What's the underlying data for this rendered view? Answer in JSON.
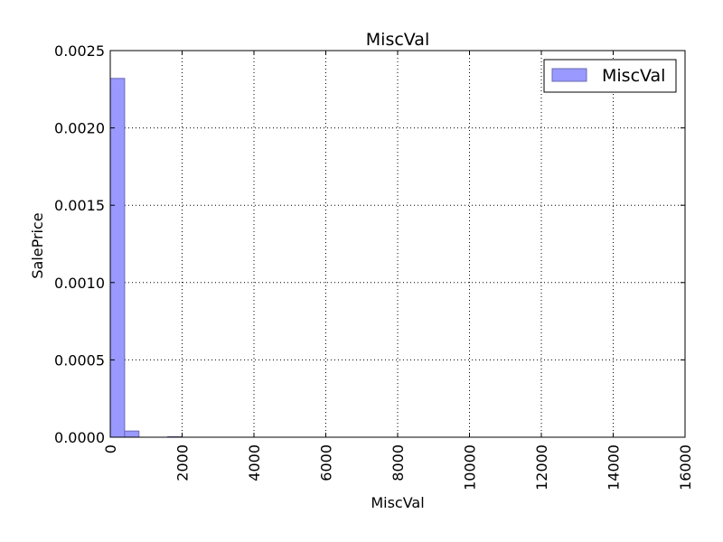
{
  "chart_data": {
    "type": "bar",
    "title": "MiscVal",
    "xlabel": "MiscVal",
    "ylabel": "SalePrice",
    "xlim": [
      0,
      16000
    ],
    "ylim": [
      0,
      0.0025
    ],
    "x_ticks": [
      "0",
      "2000",
      "4000",
      "6000",
      "8000",
      "10000",
      "12000",
      "14000",
      "16000"
    ],
    "y_ticks": [
      "0.0000",
      "0.0005",
      "0.0010",
      "0.0015",
      "0.0020",
      "0.0025"
    ],
    "grid": true,
    "legend_position": "top-right",
    "series": [
      {
        "name": "MiscVal",
        "color": "#9999ff",
        "edge_color": "#6a6ab3",
        "bins": [
          {
            "x0": 0,
            "x1": 400,
            "value": 0.00232
          },
          {
            "x0": 400,
            "x1": 800,
            "value": 4e-05
          },
          {
            "x0": 1600,
            "x1": 2000,
            "value": 3e-06
          }
        ]
      }
    ]
  }
}
